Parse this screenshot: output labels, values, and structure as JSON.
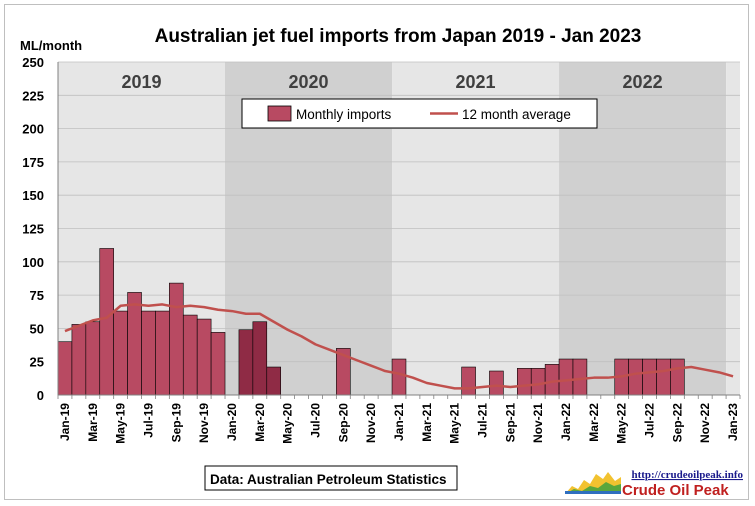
{
  "chart_data": {
    "type": "bar",
    "title": "Australian jet fuel imports from Japan 2019 - Jan 2023",
    "ylabel": "ML/month",
    "ylim": [
      0,
      250
    ],
    "yticks": [
      0,
      25,
      50,
      75,
      100,
      125,
      150,
      175,
      200,
      225,
      250
    ],
    "year_bands": [
      {
        "label": "2019",
        "shade": "#e6e6e6"
      },
      {
        "label": "2020",
        "shade": "#d0d0d0"
      },
      {
        "label": "2021",
        "shade": "#e6e6e6"
      },
      {
        "label": "2022",
        "shade": "#d0d0d0"
      }
    ],
    "categories": [
      "Jan-19",
      "Feb-19",
      "Mar-19",
      "Apr-19",
      "May-19",
      "Jun-19",
      "Jul-19",
      "Aug-19",
      "Sep-19",
      "Oct-19",
      "Nov-19",
      "Dec-19",
      "Jan-20",
      "Feb-20",
      "Mar-20",
      "Apr-20",
      "May-20",
      "Jun-20",
      "Jul-20",
      "Aug-20",
      "Sep-20",
      "Oct-20",
      "Nov-20",
      "Dec-20",
      "Jan-21",
      "Feb-21",
      "Mar-21",
      "Apr-21",
      "May-21",
      "Jun-21",
      "Jul-21",
      "Aug-21",
      "Sep-21",
      "Oct-21",
      "Nov-21",
      "Dec-21",
      "Jan-22",
      "Feb-22",
      "Mar-22",
      "Apr-22",
      "May-22",
      "Jun-22",
      "Jul-22",
      "Aug-22",
      "Sep-22",
      "Oct-22",
      "Nov-22",
      "Dec-22",
      "Jan-23"
    ],
    "xtick_labels": [
      "Jan-19",
      "Mar-19",
      "May-19",
      "Jul-19",
      "Sep-19",
      "Nov-19",
      "Jan-20",
      "Mar-20",
      "May-20",
      "Jul-20",
      "Sep-20",
      "Nov-20",
      "Jan-21",
      "Mar-21",
      "May-21",
      "Jul-21",
      "Sep-21",
      "Nov-21",
      "Jan-22",
      "Mar-22",
      "May-22",
      "Jul-22",
      "Sep-22",
      "Nov-22",
      "Jan-23"
    ],
    "series": [
      {
        "name": "Monthly imports",
        "type": "bar",
        "color": "#b84a62",
        "values": [
          40,
          53,
          55,
          110,
          63,
          77,
          63,
          63,
          84,
          60,
          57,
          47,
          0,
          49,
          55,
          21,
          0,
          0,
          0,
          0,
          35,
          0,
          0,
          0,
          27,
          0,
          0,
          0,
          0,
          21,
          0,
          18,
          0,
          20,
          20,
          23,
          27,
          27,
          0,
          0,
          27,
          27,
          27,
          27,
          27,
          0,
          0,
          0,
          0
        ]
      },
      {
        "name": "12 month average",
        "type": "line",
        "color": "#c0504d",
        "values": [
          48,
          52,
          56,
          58,
          67,
          68,
          67,
          68,
          66,
          67,
          66,
          64,
          63,
          61,
          61,
          55,
          49,
          44,
          38,
          34,
          30,
          26,
          22,
          18,
          16,
          13,
          9,
          7,
          5,
          5,
          6,
          7,
          6,
          7,
          8,
          10,
          11,
          12,
          13,
          13,
          14,
          16,
          17,
          18,
          20,
          21,
          19,
          17,
          14
        ]
      }
    ],
    "legend_position": "top-center",
    "source_note": "Data: Australian Petroleum Statistics",
    "logo": {
      "url_text": "http://crudeoilpeak.info",
      "name": "Crude Oil Peak"
    },
    "colors": {
      "bar_fill": "#b84a62",
      "bar_fill_dark": "#8f2b45",
      "line": "#c0504d",
      "gridline": "#bfbfbf"
    }
  }
}
